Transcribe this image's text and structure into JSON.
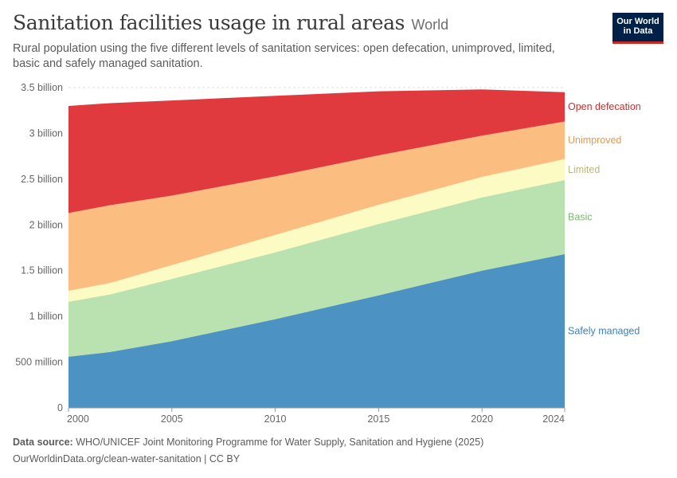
{
  "header": {
    "title": "Sanitation facilities usage in rural areas",
    "entity": "World",
    "subtitle": "Rural population using the five different levels of sanitation services: open defecation, unimproved, limited, basic and safely managed sanitation.",
    "logo_line1": "Our World",
    "logo_line2": "in Data"
  },
  "footer": {
    "source_label": "Data source:",
    "source_text": "WHO/UNICEF Joint Monitoring Programme for Water Supply, Sanitation and Hygiene (2025)",
    "url_text": "OurWorldinData.org/clean-water-sanitation | CC BY"
  },
  "chart_data": {
    "type": "area",
    "stacked": true,
    "x": [
      2000,
      2002,
      2005,
      2010,
      2015,
      2020,
      2024
    ],
    "xticks": [
      2000,
      2005,
      2010,
      2015,
      2020,
      2024
    ],
    "ylim": [
      0,
      3500000000
    ],
    "yticks": [
      {
        "value": 0,
        "label": "0"
      },
      {
        "value": 500000000,
        "label": "500 million"
      },
      {
        "value": 1000000000,
        "label": "1 billion"
      },
      {
        "value": 1500000000,
        "label": "1.5 billion"
      },
      {
        "value": 2000000000,
        "label": "2 billion"
      },
      {
        "value": 2500000000,
        "label": "2.5 billion"
      },
      {
        "value": 3000000000,
        "label": "3 billion"
      },
      {
        "value": 3500000000,
        "label": "3.5 billion"
      }
    ],
    "series": [
      {
        "name": "Safely managed",
        "color": "#4c93c4",
        "values": [
          560000000,
          610000000,
          730000000,
          970000000,
          1230000000,
          1500000000,
          1680000000
        ]
      },
      {
        "name": "Basic",
        "color": "#b9e2b0",
        "values": [
          600000000,
          630000000,
          680000000,
          730000000,
          780000000,
          800000000,
          810000000
        ]
      },
      {
        "name": "Limited",
        "color": "#fdfbc4",
        "values": [
          120000000,
          125000000,
          150000000,
          190000000,
          210000000,
          225000000,
          230000000
        ]
      },
      {
        "name": "Unimproved",
        "color": "#fbbd80",
        "values": [
          850000000,
          850000000,
          760000000,
          640000000,
          540000000,
          450000000,
          410000000
        ]
      },
      {
        "name": "Open defecation",
        "color": "#e03a3e",
        "values": [
          1170000000,
          1115000000,
          1040000000,
          880000000,
          700000000,
          505000000,
          320000000
        ]
      }
    ]
  }
}
